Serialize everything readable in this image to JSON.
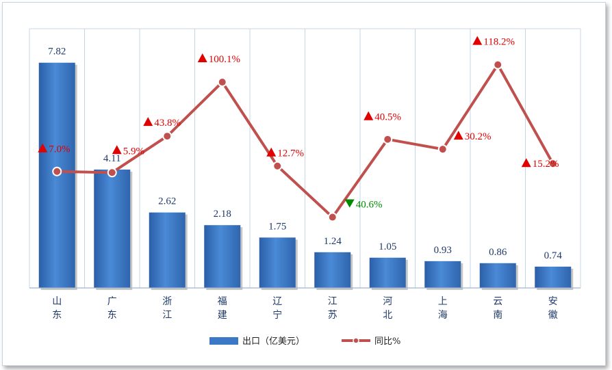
{
  "chart_data": {
    "type": "bar+line",
    "categories": [
      "山东",
      "广东",
      "浙江",
      "福建",
      "辽宁",
      "江苏",
      "河北",
      "上海",
      "云南",
      "安徽"
    ],
    "category_label_lines": [
      [
        "山",
        "东"
      ],
      [
        "广",
        "东"
      ],
      [
        "浙",
        "江"
      ],
      [
        "福",
        "建"
      ],
      [
        "辽",
        "宁"
      ],
      [
        "江",
        "苏"
      ],
      [
        "河",
        "北"
      ],
      [
        "上",
        "海"
      ],
      [
        "云",
        "南"
      ],
      [
        "安",
        "徽"
      ]
    ],
    "series": [
      {
        "name": "出口（亿美元）",
        "type": "bar",
        "color": "#3b78c6",
        "values": [
          7.82,
          4.11,
          2.62,
          2.18,
          1.75,
          1.24,
          1.05,
          0.93,
          0.86,
          0.74
        ],
        "labels": [
          "7.82",
          "4.11",
          "2.62",
          "2.18",
          "1.75",
          "1.24",
          "1.05",
          "0.93",
          "0.86",
          "0.74"
        ]
      },
      {
        "name": "同比%",
        "type": "line",
        "color": "#c0504d",
        "values": [
          7.0,
          5.9,
          43.8,
          100.1,
          12.7,
          -40.6,
          40.5,
          30.2,
          118.2,
          15.2
        ],
        "labels": [
          "7.0%",
          "5.9%",
          "43.8%",
          "100.1%",
          "12.7%",
          "40.6%",
          "40.5%",
          "30.2%",
          "118.2%",
          "15.2%"
        ],
        "directions": [
          "up",
          "up",
          "up",
          "up",
          "up",
          "down",
          "up",
          "up",
          "up",
          "up"
        ]
      }
    ],
    "up_color": "#e00000",
    "down_color": "#008a00",
    "grid": "vertical",
    "legend_position": "bottom"
  }
}
